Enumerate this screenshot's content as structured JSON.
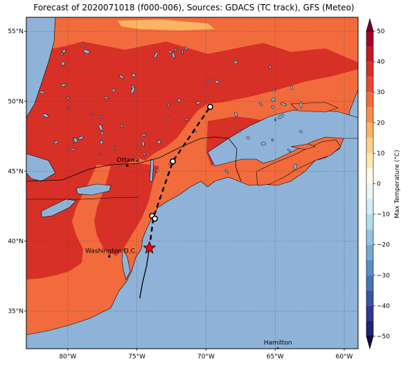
{
  "title": "Forecast of 2020071018 (f000-006), Sources: GDACS (TC track), GFS (Meteo)",
  "map": {
    "lon_range": [
      -83,
      -59
    ],
    "lat_range": [
      32.3,
      56
    ],
    "lon_ticks": [
      {
        "value": -80,
        "label": "80°W"
      },
      {
        "value": -75,
        "label": "75°W"
      },
      {
        "value": -70,
        "label": "70°W"
      },
      {
        "value": -65,
        "label": "65°W"
      },
      {
        "value": -60,
        "label": "60°W"
      }
    ],
    "lat_ticks": [
      {
        "value": 55,
        "label": "55°N"
      },
      {
        "value": 50,
        "label": "50°N"
      },
      {
        "value": 45,
        "label": "45°N"
      },
      {
        "value": 40,
        "label": "40°N"
      },
      {
        "value": 35,
        "label": "35°N"
      }
    ],
    "gridlines": "dotted",
    "colors": {
      "ocean": "#8fb3d8",
      "band_20_30": "#f26b3d",
      "band_30_40": "#d73027",
      "band_10_20": "#fdb462"
    }
  },
  "cities": [
    {
      "name": "Ottawa",
      "lon": -75.7,
      "lat": 45.4
    },
    {
      "name": "Washington D.C.",
      "lon": -77.0,
      "lat": 38.9
    },
    {
      "name": "Hamilton",
      "lon": -64.8,
      "lat": 32.3
    }
  ],
  "track": {
    "observed": [
      {
        "lon": -74.8,
        "lat": 35.9
      },
      {
        "lon": -74.6,
        "lat": 37.0
      },
      {
        "lon": -74.3,
        "lat": 38.2
      },
      {
        "lon": -74.1,
        "lat": 39.5
      }
    ],
    "forecast": [
      {
        "lon": -74.1,
        "lat": 39.5
      },
      {
        "lon": -73.8,
        "lat": 41.7
      },
      {
        "lon": -72.4,
        "lat": 45.7
      },
      {
        "lon": -69.7,
        "lat": 49.6
      }
    ],
    "current_position": {
      "lon": -74.1,
      "lat": 39.5
    },
    "open_markers": [
      {
        "lon": -73.9,
        "lat": 41.8
      },
      {
        "lon": -73.7,
        "lat": 41.6
      },
      {
        "lon": -72.4,
        "lat": 45.7
      },
      {
        "lon": -69.7,
        "lat": 49.6
      }
    ]
  },
  "colorbar": {
    "label": "Max Temperature (°C)",
    "min": -50,
    "max": 50,
    "ticks": [
      50,
      40,
      30,
      20,
      10,
      0,
      -10,
      -20,
      -30,
      -40,
      -50
    ],
    "bands": [
      {
        "from": 45,
        "to": 50,
        "color": "#a50026"
      },
      {
        "from": 40,
        "to": 45,
        "color": "#c01a27"
      },
      {
        "from": 35,
        "to": 40,
        "color": "#d73027"
      },
      {
        "from": 30,
        "to": 35,
        "color": "#e34a33"
      },
      {
        "from": 25,
        "to": 30,
        "color": "#f26b3d"
      },
      {
        "from": 20,
        "to": 25,
        "color": "#f88d52"
      },
      {
        "from": 15,
        "to": 20,
        "color": "#fdb462"
      },
      {
        "from": 10,
        "to": 15,
        "color": "#fed18b"
      },
      {
        "from": 5,
        "to": 10,
        "color": "#fee9b5"
      },
      {
        "from": 0,
        "to": 5,
        "color": "#fefee6"
      },
      {
        "from": -5,
        "to": 0,
        "color": "#ecf7f4"
      },
      {
        "from": -10,
        "to": -5,
        "color": "#d1ecf4"
      },
      {
        "from": -15,
        "to": -10,
        "color": "#b2dbea"
      },
      {
        "from": -20,
        "to": -15,
        "color": "#93c3de"
      },
      {
        "from": -25,
        "to": -20,
        "color": "#74a9cf"
      },
      {
        "from": -30,
        "to": -25,
        "color": "#5b8fc3"
      },
      {
        "from": -35,
        "to": -30,
        "color": "#4575b4"
      },
      {
        "from": -40,
        "to": -35,
        "color": "#3a54a2"
      },
      {
        "from": -45,
        "to": -40,
        "color": "#313695"
      },
      {
        "from": -50,
        "to": -45,
        "color": "#20236e"
      }
    ],
    "extend_top_color": "#7f0022",
    "extend_bottom_color": "#0d0e45"
  }
}
